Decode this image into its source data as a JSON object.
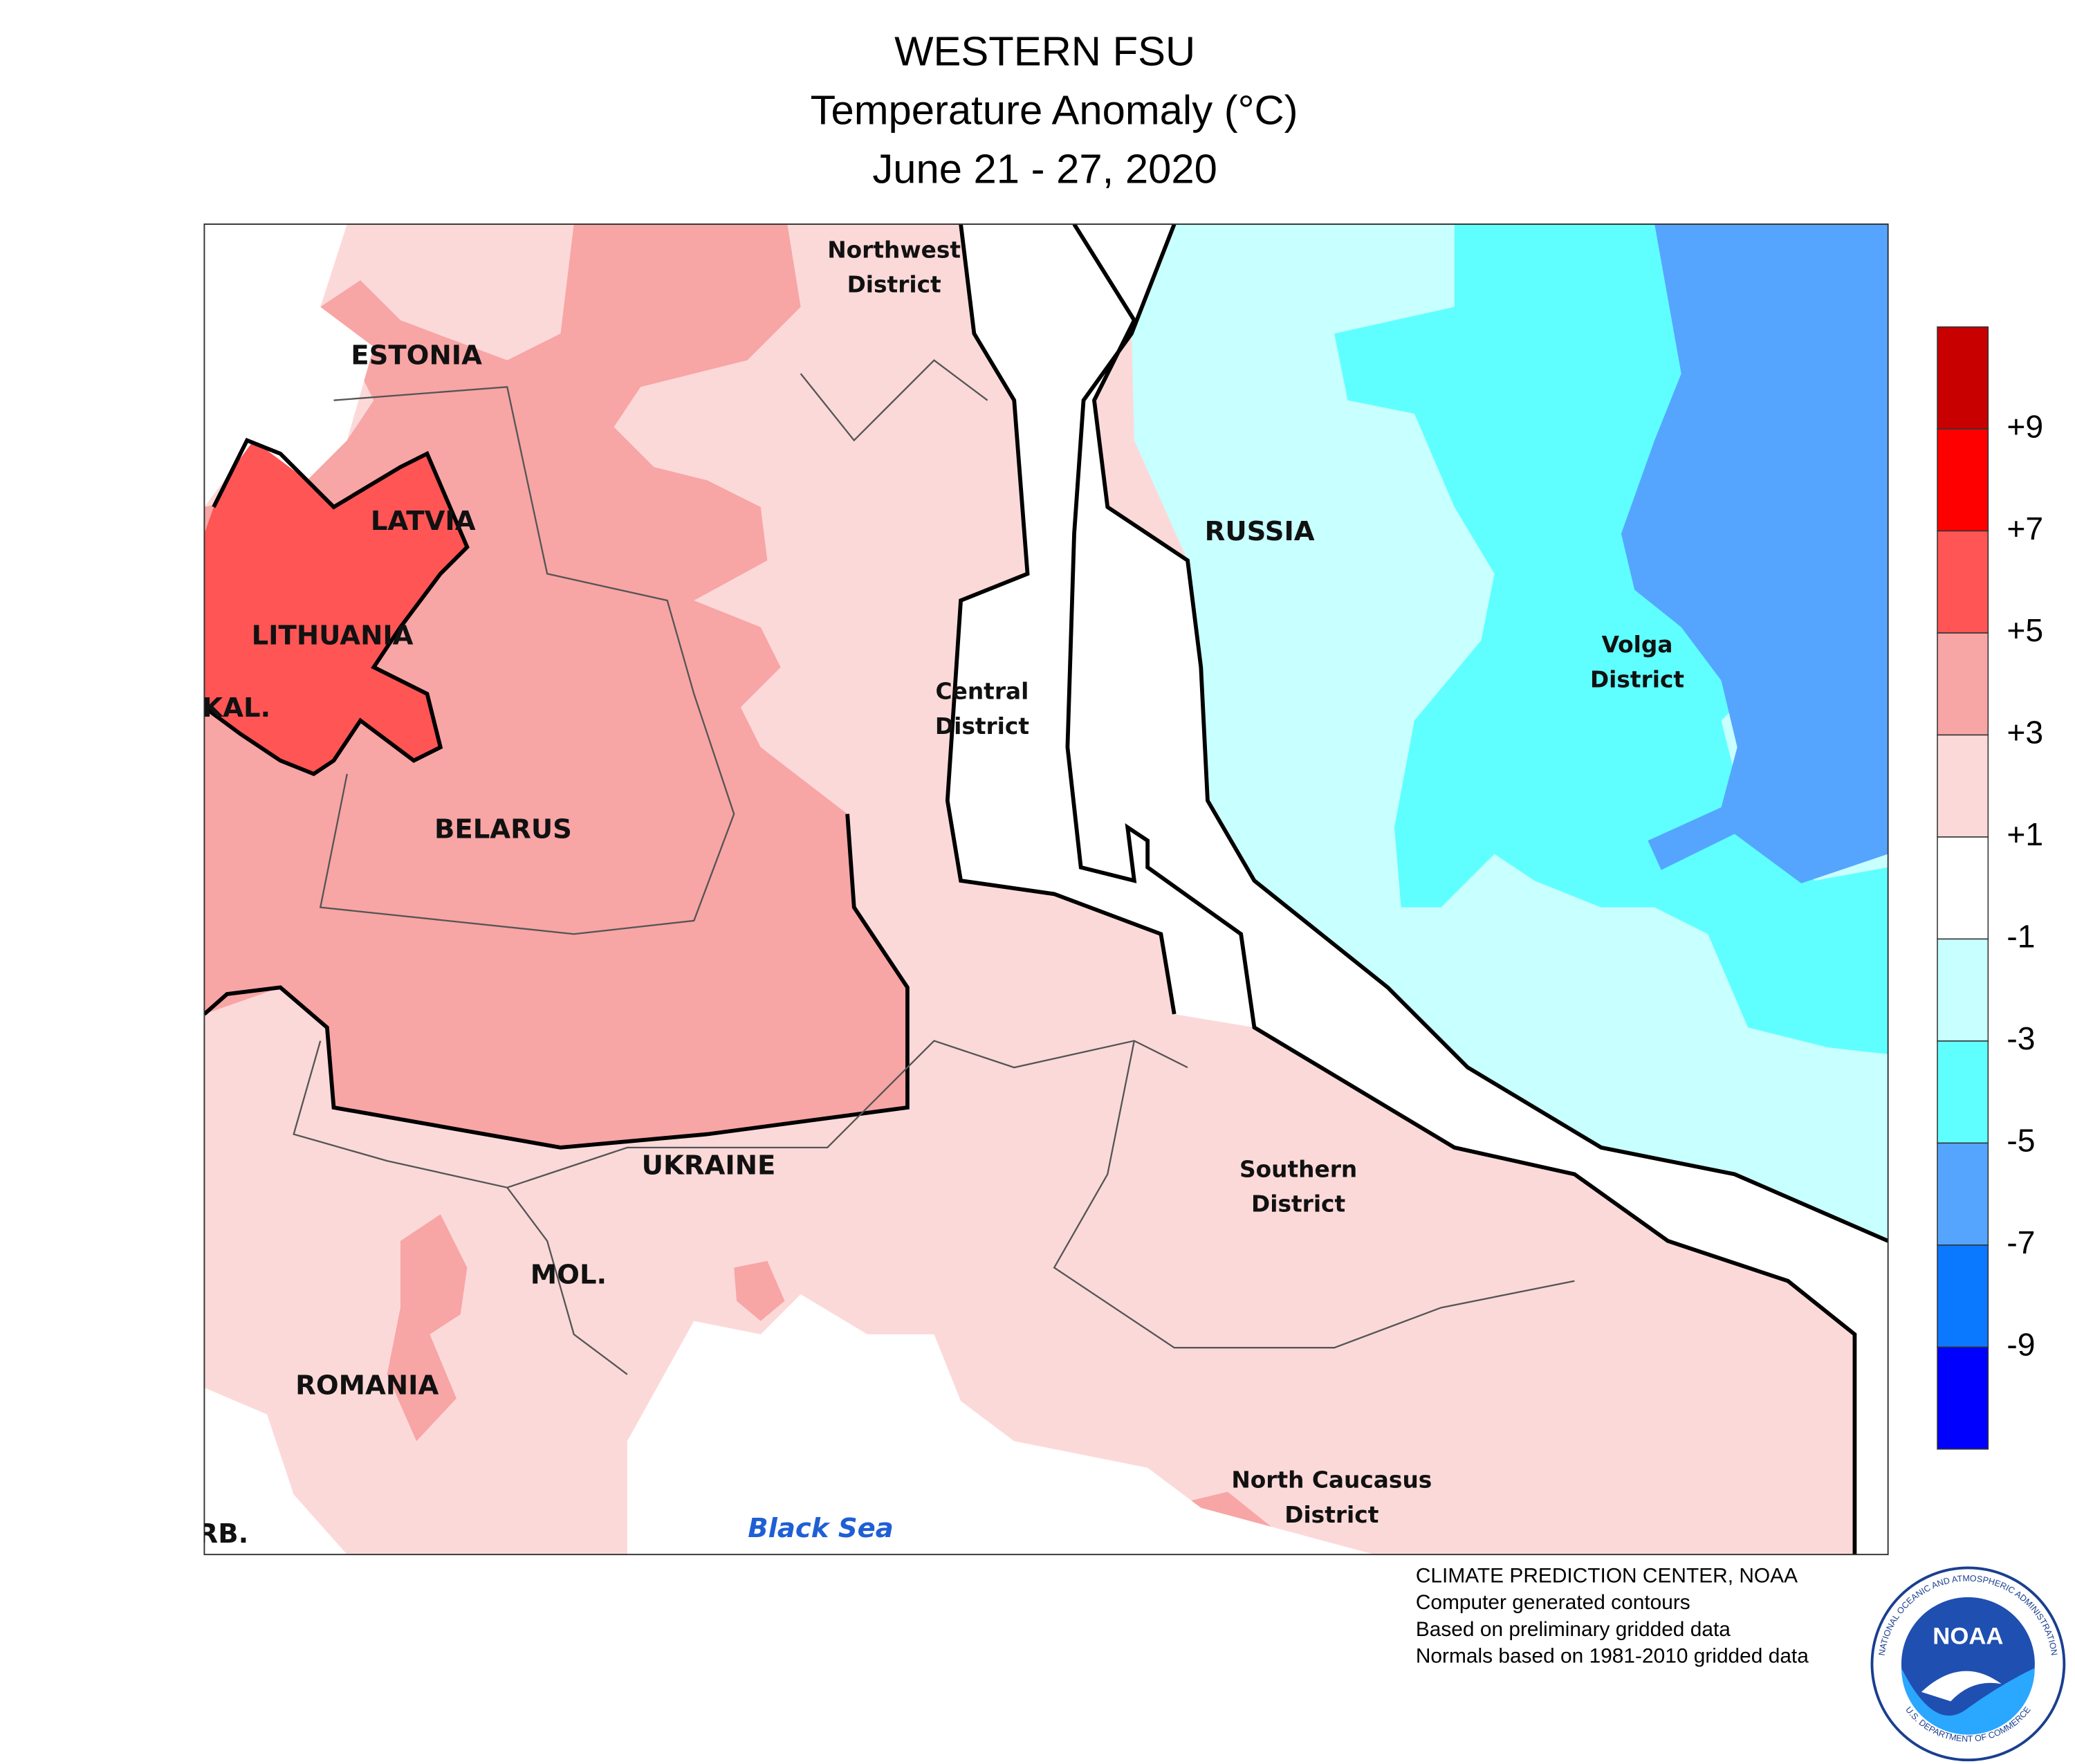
{
  "header": {
    "title": "WESTERN FSU",
    "subtitle": "Temperature Anomaly (°C)",
    "dates": "June 21 - 27, 2020"
  },
  "map": {
    "labels": {
      "northwest": [
        "Northwest",
        "District"
      ],
      "estonia": "ESTONIA",
      "latvia": "LATVIA",
      "lithuania": "LITHUANIA",
      "kal": "KAL.",
      "belarus": "BELARUS",
      "russia": "RUSSIA",
      "volga": [
        "Volga",
        "District"
      ],
      "central": [
        "Central",
        "District"
      ],
      "ukraine": "UKRAINE",
      "southern": [
        "Southern",
        "District"
      ],
      "mol": "MOL.",
      "romania": "ROMANIA",
      "caucasus": [
        "North Caucasus",
        "District"
      ],
      "serb": "RB.",
      "sea": "Black Sea"
    }
  },
  "legend": {
    "colors": [
      "#c80000",
      "#ff0000",
      "#ff5555",
      "#f8a5a5",
      "#fcd9d9",
      "#ffffff",
      "#c8ffff",
      "#60ffff",
      "#55a5ff",
      "#0a78ff",
      "#0000ff"
    ],
    "ticks": [
      "+9",
      "+7",
      "+5",
      "+3",
      "+1",
      "-1",
      "-3",
      "-5",
      "-7",
      "-9"
    ]
  },
  "footer": {
    "lines": [
      "CLIMATE PREDICTION CENTER, NOAA",
      "Computer generated contours",
      "Based on preliminary gridded data",
      "Normals based on 1981-2010 gridded data"
    ]
  },
  "logo": {
    "name": "NOAA",
    "ring_top": "NATIONAL OCEANIC AND ATMOSPHERIC ADMINISTRATION",
    "ring_bottom": "U.S. DEPARTMENT OF COMMERCE"
  }
}
